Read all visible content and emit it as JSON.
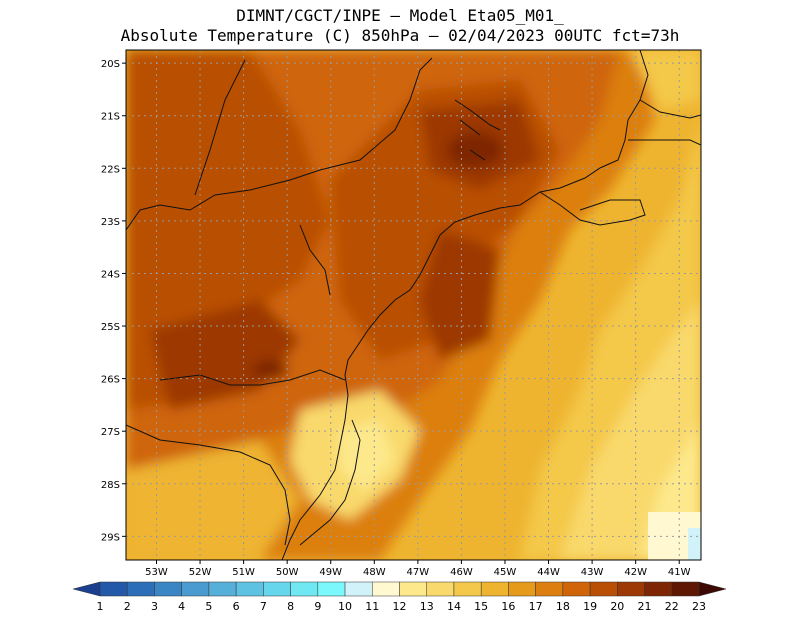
{
  "title": {
    "line1": "DIMNT/CGCT/INPE –  Model Eta05_M01_",
    "line2": "Absolute Temperature (C) 850hPa –  02/04/2023 00UTC fct=73h"
  },
  "map": {
    "lon_range": [
      -53.7,
      -40.5
    ],
    "lat_range": [
      -29.45,
      -19.75
    ],
    "lat_ticks": [
      "20S",
      "21S",
      "22S",
      "23S",
      "24S",
      "25S",
      "26S",
      "27S",
      "28S",
      "29S"
    ],
    "lon_ticks": [
      "53W",
      "52W",
      "51W",
      "50W",
      "49W",
      "48W",
      "47W",
      "46W",
      "45W",
      "44W",
      "43W",
      "42W",
      "41W"
    ],
    "grid": true,
    "field": "Absolute Temperature 850hPa",
    "range_c": [
      11,
      22
    ]
  },
  "colorbar": {
    "labels": [
      "1",
      "2",
      "3",
      "4",
      "5",
      "6",
      "7",
      "8",
      "9",
      "10",
      "11",
      "12",
      "13",
      "14",
      "15",
      "16",
      "17",
      "18",
      "19",
      "20",
      "21",
      "22",
      "23"
    ],
    "colors": [
      "#1a3f8f",
      "#2458a8",
      "#2c6fb8",
      "#3a86c4",
      "#4a9bcf",
      "#55afd8",
      "#5ec3e2",
      "#66d6ec",
      "#70e8f4",
      "#7af8fb",
      "#d2f2fa",
      "#fff8d0",
      "#fde98c",
      "#f9d96c",
      "#f4c84a",
      "#eeb430",
      "#e69a1c",
      "#dc7f10",
      "#cf6508",
      "#b94f05",
      "#9c3905",
      "#7e2604",
      "#5e1703",
      "#3c0a02"
    ]
  }
}
